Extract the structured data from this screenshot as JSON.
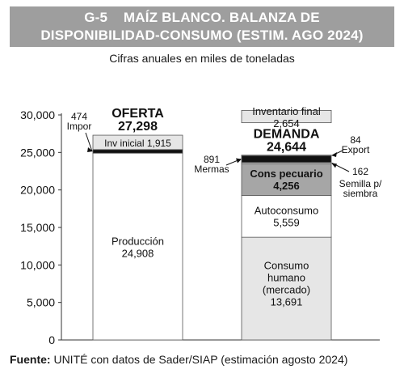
{
  "title": {
    "number": "G-5",
    "line1": "MAÍZ BLANCO. BALANZA DE",
    "line2": "DISPONIBILIDAD-CONSUMO (ESTIM. AGO 2024)"
  },
  "subtitle": "Cifras anuales en miles de toneladas",
  "source": {
    "label": "Fuente:",
    "text": " UNITÉ con datos de Sader/SIAP (estimación agosto 2024)"
  },
  "colors": {
    "title_band": "#9e9e9e",
    "light_gray": "#e6e6e6",
    "mid_gray": "#a6a6a6",
    "black": "#111111",
    "white": "#ffffff"
  },
  "chart_data": {
    "type": "bar",
    "stacked": true,
    "ylim": [
      0,
      30000
    ],
    "yticks": [
      "0",
      "5,000",
      "10,000",
      "15,000",
      "20,000",
      "25,000",
      "30,000"
    ],
    "grid": false,
    "bars": [
      {
        "name": "OFERTA",
        "total": "27,298",
        "segments": [
          {
            "label": "Producción",
            "value": 24908,
            "value_text": "24,908",
            "fill": "white",
            "label_outside": false
          },
          {
            "label": "Impor",
            "value": 474,
            "value_text": "474",
            "fill": "black",
            "label_outside": true
          },
          {
            "label": "Inv inicial",
            "value": 1915,
            "value_text": "1,915",
            "fill": "light",
            "label_outside": false
          }
        ]
      },
      {
        "name": "DEMANDA",
        "total": "24,644",
        "segments": [
          {
            "label": "Consumo humano (mercado)",
            "label_lines": [
              "Consumo",
              "humano",
              "(mercado)"
            ],
            "value": 13691,
            "value_text": "13,691",
            "fill": "light",
            "label_outside": false
          },
          {
            "label": "Autoconsumo",
            "value": 5559,
            "value_text": "5,559",
            "fill": "white",
            "label_outside": false
          },
          {
            "label": "Cons pecuario",
            "value": 4256,
            "value_text": "4,256",
            "fill": "mid",
            "label_outside": false
          },
          {
            "label": "Semilla p/ siembra",
            "label_lines": [
              "Semilla p/",
              "siembra"
            ],
            "value": 162,
            "value_text": "162",
            "fill": "light",
            "label_outside": true
          },
          {
            "label": "Mermas",
            "value": 891,
            "value_text": "891",
            "fill": "black",
            "label_outside": true
          },
          {
            "label": "Export",
            "value": 84,
            "value_text": "84",
            "fill": "light",
            "label_outside": true
          }
        ],
        "separate_box": {
          "label": "Inventario final",
          "value": 2654,
          "value_text": "2,654"
        }
      }
    ]
  }
}
